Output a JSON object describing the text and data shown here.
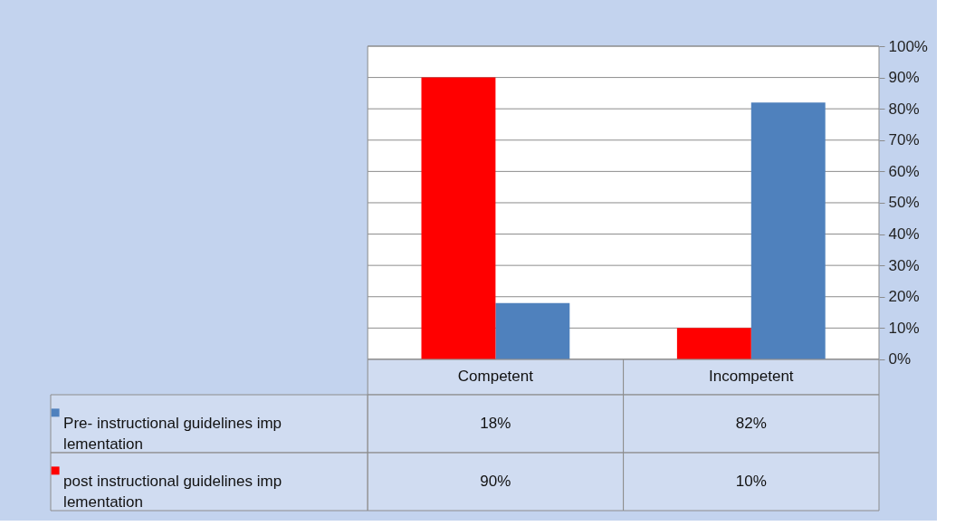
{
  "chart_data": {
    "type": "bar",
    "categories": [
      "Competent",
      "Incompetent"
    ],
    "series": [
      {
        "name": "Pre- instructional guidelines imp lementation",
        "color": "#4f81bd",
        "values": [
          18,
          82
        ],
        "value_labels": [
          "18%",
          "82%"
        ]
      },
      {
        "name": "post instructional guidelines imp lementation",
        "color": "#ff0000",
        "values": [
          90,
          10
        ],
        "value_labels": [
          "90%",
          "10%"
        ]
      }
    ],
    "ylim": [
      0,
      100
    ],
    "yticks": [
      {
        "value": 0,
        "label": "0%"
      },
      {
        "value": 10,
        "label": "10%"
      },
      {
        "value": 20,
        "label": "20%"
      },
      {
        "value": 30,
        "label": "30%"
      },
      {
        "value": 40,
        "label": "40%"
      },
      {
        "value": 50,
        "label": "50%"
      },
      {
        "value": 60,
        "label": "60%"
      },
      {
        "value": 70,
        "label": "70%"
      },
      {
        "value": 80,
        "label": "80%"
      },
      {
        "value": 90,
        "label": "90%"
      },
      {
        "value": 100,
        "label": "100%"
      }
    ],
    "grid": "y",
    "legend": "bottom left"
  }
}
